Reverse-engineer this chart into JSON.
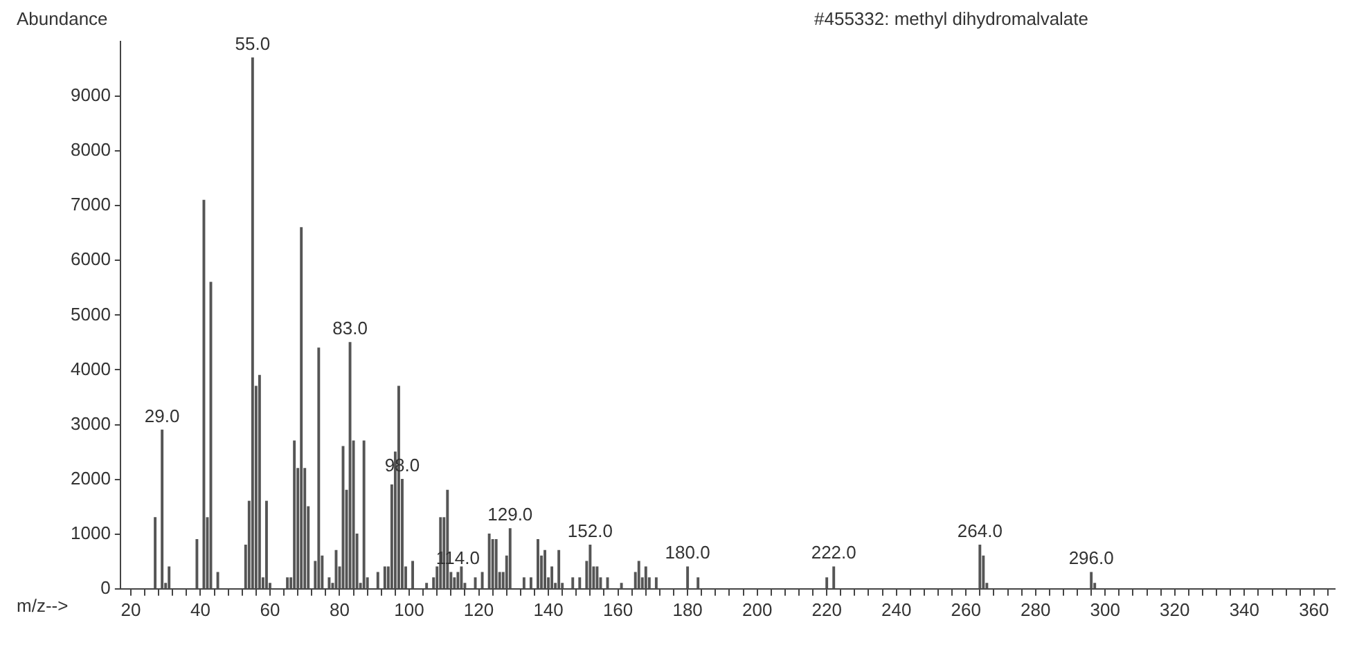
{
  "chart_data": {
    "type": "bar",
    "title": "#455332: methyl dihydromalvalate",
    "ylabel": "Abundance",
    "xlabel": "m/z-->",
    "x": [
      27,
      29,
      30,
      31,
      39,
      41,
      42,
      43,
      45,
      53,
      54,
      55,
      56,
      57,
      58,
      59,
      60,
      65,
      66,
      67,
      68,
      69,
      70,
      71,
      73,
      74,
      75,
      77,
      78,
      79,
      80,
      81,
      82,
      83,
      84,
      85,
      86,
      87,
      88,
      91,
      93,
      94,
      95,
      96,
      97,
      98,
      99,
      101,
      105,
      107,
      108,
      109,
      110,
      111,
      112,
      113,
      114,
      115,
      116,
      119,
      121,
      123,
      124,
      125,
      126,
      127,
      128,
      129,
      133,
      135,
      137,
      138,
      139,
      140,
      141,
      142,
      143,
      144,
      147,
      149,
      151,
      152,
      153,
      154,
      155,
      157,
      161,
      165,
      166,
      167,
      168,
      169,
      171,
      180,
      183,
      220,
      222,
      264,
      265,
      266,
      296,
      297
    ],
    "values": [
      1300,
      2900,
      100,
      400,
      900,
      7100,
      1300,
      5600,
      300,
      800,
      1600,
      9700,
      3700,
      3900,
      200,
      1600,
      100,
      200,
      200,
      2700,
      2200,
      6600,
      2200,
      1500,
      500,
      4400,
      600,
      200,
      100,
      700,
      400,
      2600,
      1800,
      4500,
      2700,
      1000,
      100,
      2700,
      200,
      300,
      400,
      400,
      1900,
      2500,
      3700,
      2000,
      400,
      500,
      100,
      200,
      400,
      1300,
      1300,
      1800,
      300,
      200,
      300,
      400,
      100,
      200,
      300,
      1000,
      900,
      900,
      300,
      300,
      600,
      1100,
      200,
      200,
      900,
      600,
      700,
      200,
      400,
      100,
      700,
      100,
      200,
      200,
      500,
      800,
      400,
      400,
      200,
      200,
      100,
      300,
      500,
      200,
      400,
      200,
      200,
      400,
      200,
      200,
      400,
      800,
      600,
      100,
      300,
      100
    ],
    "color": "#555555",
    "xlim": [
      17,
      366
    ],
    "xticks": [
      20,
      {
        "value": 24,
        "label": null
      },
      {
        "value": 28,
        "label": null
      },
      {
        "value": 32,
        "label": null
      },
      {
        "value": 36,
        "label": null
      },
      40,
      {
        "value": 44,
        "label": null
      },
      {
        "value": 48,
        "label": null
      },
      {
        "value": 52,
        "label": null
      },
      {
        "value": 56,
        "label": null
      },
      60,
      {
        "value": 64,
        "label": null
      },
      {
        "value": 68,
        "label": null
      },
      {
        "value": 72,
        "label": null
      },
      {
        "value": 76,
        "label": null
      },
      80,
      {
        "value": 84,
        "label": null
      },
      {
        "value": 88,
        "label": null
      },
      {
        "value": 92,
        "label": null
      },
      {
        "value": 96,
        "label": null
      },
      100,
      {
        "value": 104,
        "label": null
      },
      {
        "value": 108,
        "label": null
      },
      {
        "value": 112,
        "label": null
      },
      {
        "value": 116,
        "label": null
      },
      120,
      {
        "value": 124,
        "label": null
      },
      {
        "value": 128,
        "label": null
      },
      {
        "value": 132,
        "label": null
      },
      {
        "value": 136,
        "label": null
      },
      140,
      {
        "value": 144,
        "label": null
      },
      {
        "value": 148,
        "label": null
      },
      {
        "value": 152,
        "label": null
      },
      {
        "value": 156,
        "label": null
      },
      160,
      {
        "value": 164,
        "label": null
      },
      {
        "value": 168,
        "label": null
      },
      {
        "value": 172,
        "label": null
      },
      {
        "value": 176,
        "label": null
      },
      180,
      {
        "value": 184,
        "label": null
      },
      {
        "value": 188,
        "label": null
      },
      {
        "value": 192,
        "label": null
      },
      {
        "value": 196,
        "label": null
      },
      200,
      {
        "value": 204,
        "label": null
      },
      {
        "value": 208,
        "label": null
      },
      {
        "value": 212,
        "label": null
      },
      {
        "value": 216,
        "label": null
      },
      220,
      {
        "value": 224,
        "label": null
      },
      {
        "value": 228,
        "label": null
      },
      {
        "value": 232,
        "label": null
      },
      {
        "value": 236,
        "label": null
      },
      240,
      {
        "value": 244,
        "label": null
      },
      {
        "value": 248,
        "label": null
      },
      {
        "value": 252,
        "label": null
      },
      {
        "value": 256,
        "label": null
      },
      260,
      {
        "value": 264,
        "label": null
      },
      {
        "value": 268,
        "label": null
      },
      {
        "value": 272,
        "label": null
      },
      {
        "value": 276,
        "label": null
      },
      280,
      {
        "value": 284,
        "label": null
      },
      {
        "value": 288,
        "label": null
      },
      {
        "value": 292,
        "label": null
      },
      {
        "value": 296,
        "label": null
      },
      300,
      {
        "value": 304,
        "label": null
      },
      {
        "value": 308,
        "label": null
      },
      {
        "value": 312,
        "label": null
      },
      {
        "value": 316,
        "label": null
      },
      320,
      {
        "value": 324,
        "label": null
      },
      {
        "value": 328,
        "label": null
      },
      {
        "value": 332,
        "label": null
      },
      {
        "value": 336,
        "label": null
      },
      340,
      {
        "value": 344,
        "label": null
      },
      {
        "value": 348,
        "label": null
      },
      {
        "value": 352,
        "label": null
      },
      {
        "value": 356,
        "label": null
      },
      360,
      {
        "value": 364,
        "label": null
      }
    ],
    "ylim": [
      0,
      10000
    ],
    "yticks": [
      0,
      1000,
      2000,
      3000,
      4000,
      5000,
      6000,
      7000,
      8000,
      9000
    ],
    "grid": false,
    "legend": false,
    "annotations": [
      {
        "text": "29.0",
        "x": 29,
        "y": 2900
      },
      {
        "text": "55.0",
        "x": 55,
        "y": 9700
      },
      {
        "text": "83.0",
        "x": 83,
        "y": 4500
      },
      {
        "text": "98.0",
        "x": 98,
        "y": 2000
      },
      {
        "text": "114.0",
        "x": 114,
        "y": 300
      },
      {
        "text": "129.0",
        "x": 129,
        "y": 1100
      },
      {
        "text": "152.0",
        "x": 152,
        "y": 800
      },
      {
        "text": "180.0",
        "x": 180,
        "y": 400
      },
      {
        "text": "222.0",
        "x": 222,
        "y": 400
      },
      {
        "text": "264.0",
        "x": 264,
        "y": 800
      },
      {
        "text": "296.0",
        "x": 296,
        "y": 300
      }
    ]
  }
}
